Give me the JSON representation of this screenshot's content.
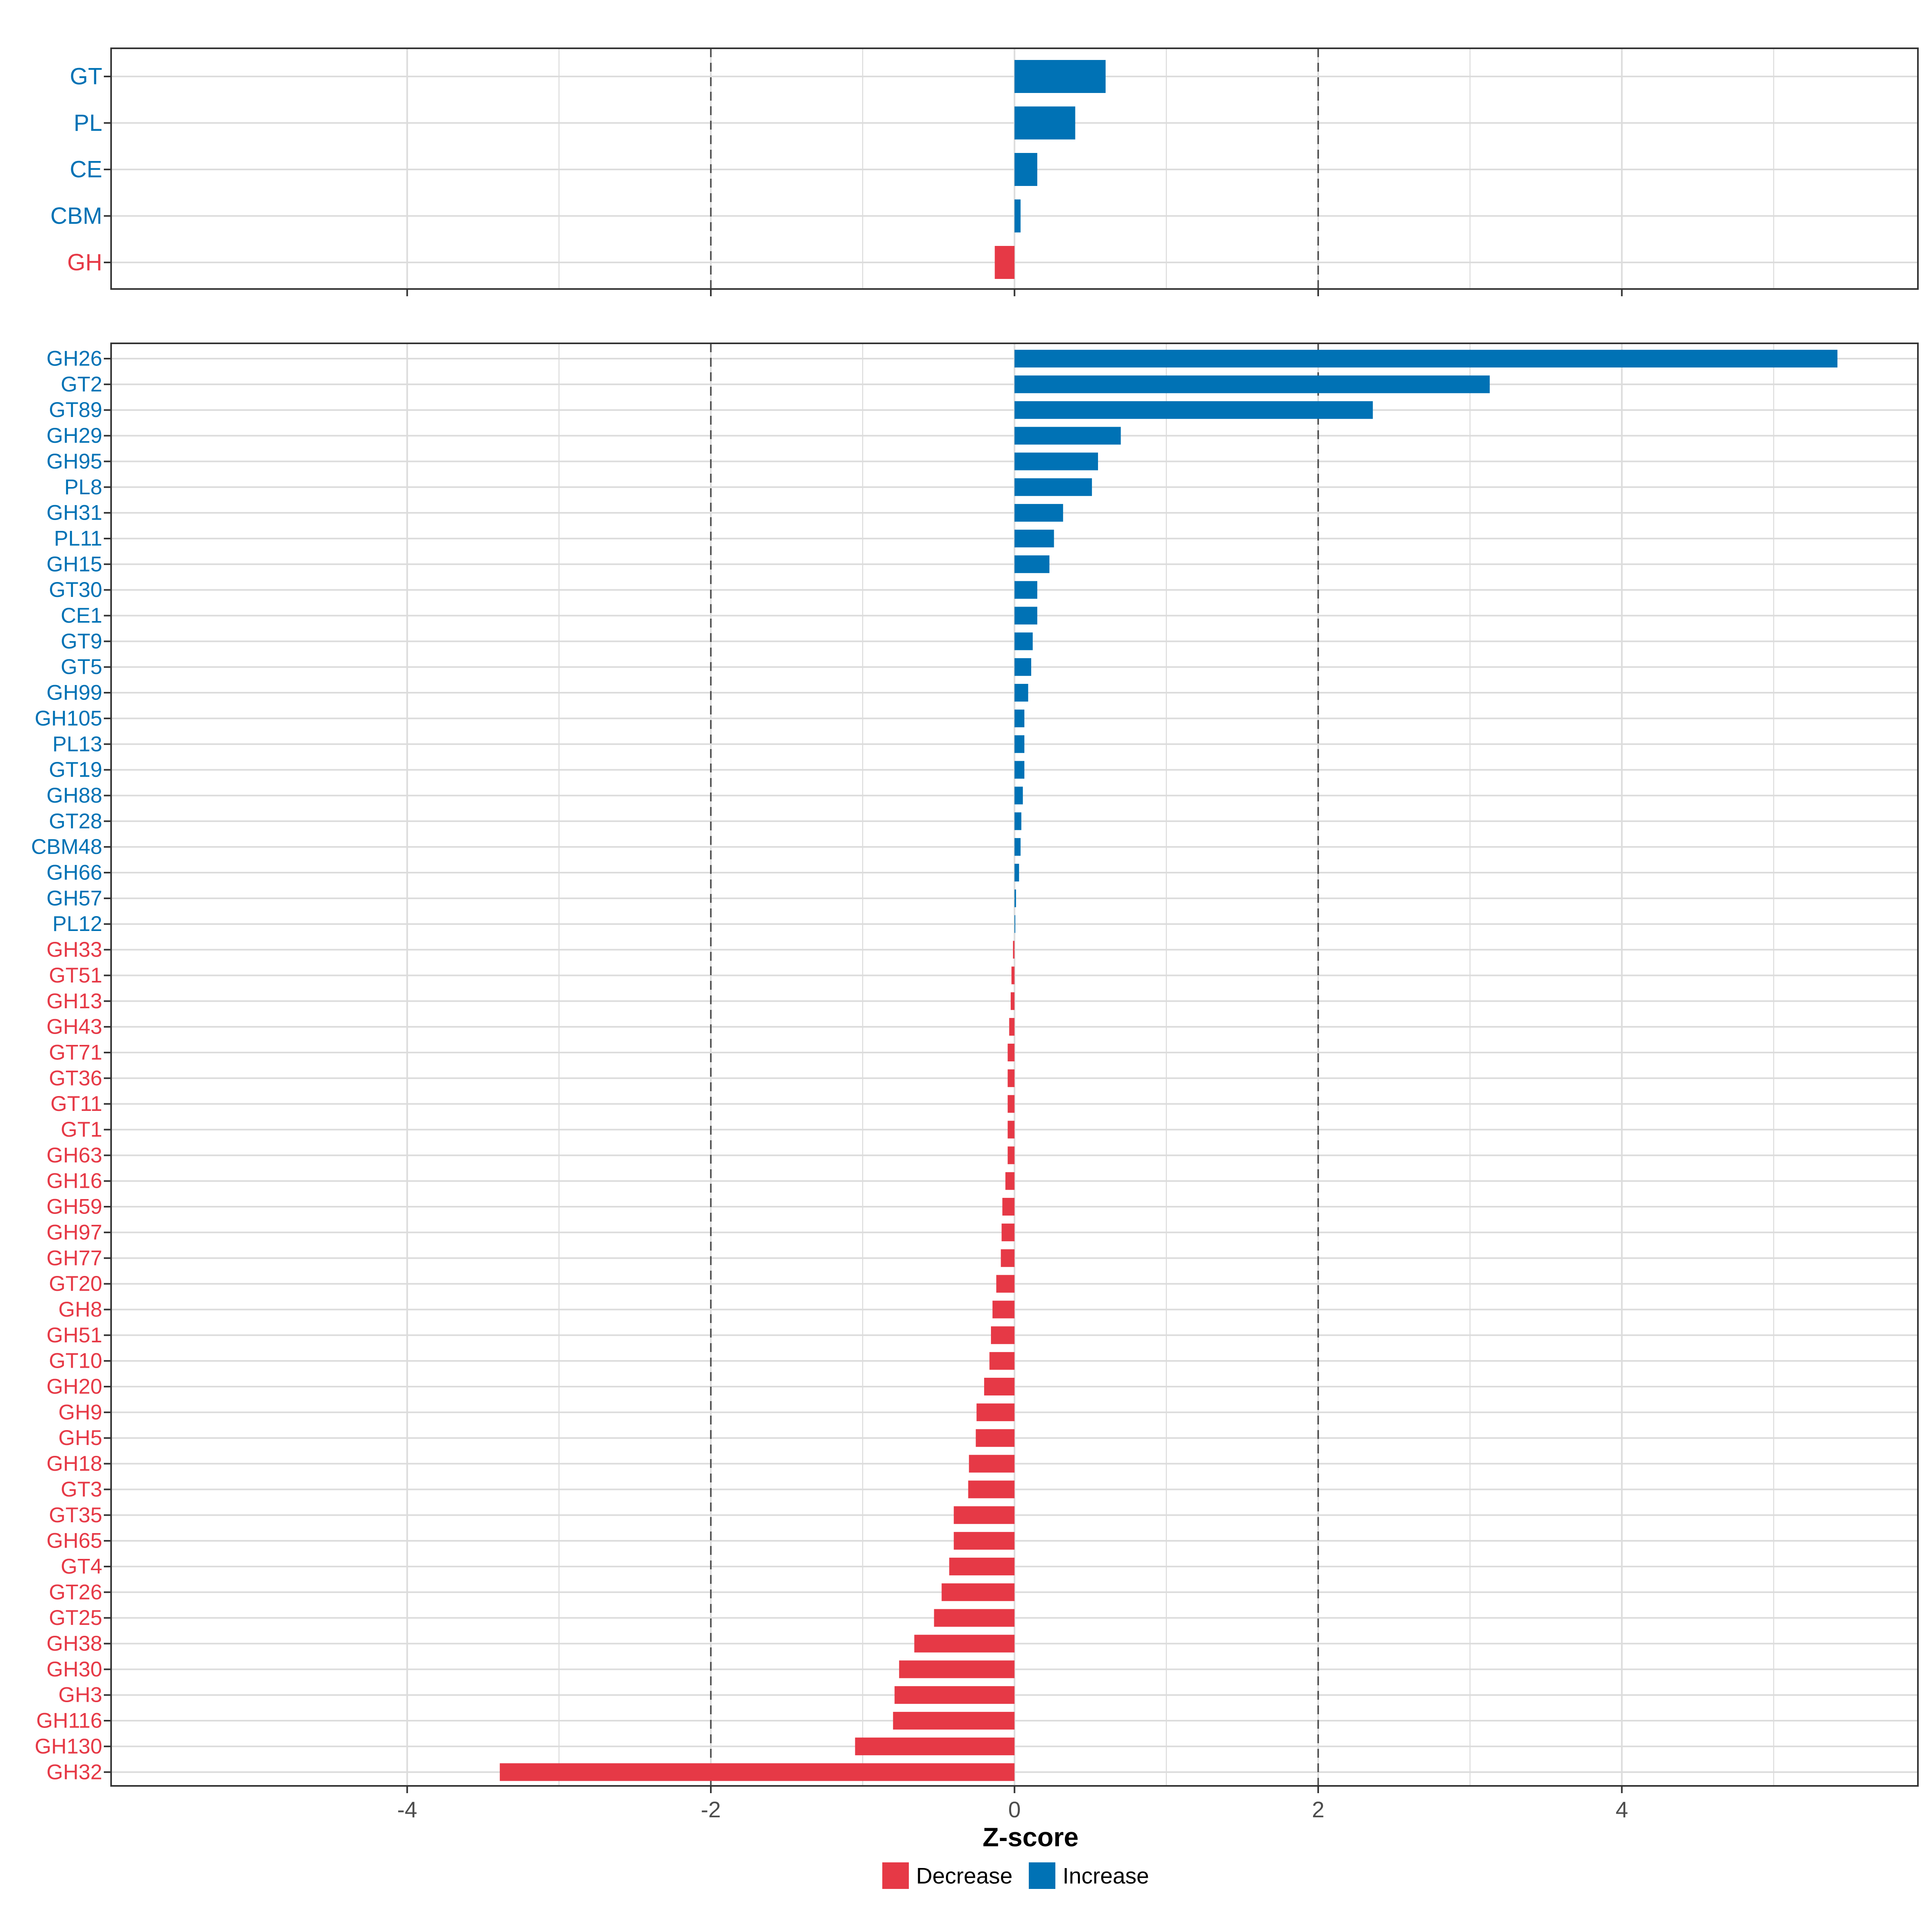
{
  "chart_data": {
    "type": "bar",
    "orientation": "horizontal",
    "xlabel": "Z-score",
    "ylabel": "",
    "xlim": [
      -5.95,
      5.95
    ],
    "x_ticks": [
      -4,
      -2,
      0,
      2,
      4
    ],
    "x_tick_labels": [
      "-4",
      "-2",
      "0",
      "2",
      "4"
    ],
    "reference_lines": [
      -2,
      2
    ],
    "grid": true,
    "colors": {
      "Increase": "#0072b5",
      "Decrease": "#e63946"
    },
    "legend": {
      "placement": "bottom",
      "entries": [
        {
          "name": "Decrease",
          "color": "#e63946"
        },
        {
          "name": "Increase",
          "color": "#0072b5"
        }
      ]
    },
    "panels": [
      {
        "name": "class",
        "categories": [
          "GT",
          "PL",
          "CE",
          "CBM",
          "GH"
        ],
        "values": [
          0.6,
          0.4,
          0.15,
          0.04,
          -0.13
        ]
      },
      {
        "name": "family",
        "categories": [
          "GH26",
          "GT2",
          "GT89",
          "GH29",
          "GH95",
          "PL8",
          "GH31",
          "PL11",
          "GH15",
          "GT30",
          "CE1",
          "GT9",
          "GT5",
          "GH99",
          "GH105",
          "PL13",
          "GT19",
          "GH88",
          "GT28",
          "CBM48",
          "GH66",
          "GH57",
          "PL12",
          "GH33",
          "GT51",
          "GH13",
          "GH43",
          "GT71",
          "GT36",
          "GT11",
          "GT1",
          "GH63",
          "GH16",
          "GH59",
          "GH97",
          "GH77",
          "GT20",
          "GH8",
          "GH51",
          "GT10",
          "GH20",
          "GH9",
          "GH5",
          "GH18",
          "GT3",
          "GT35",
          "GH65",
          "GT4",
          "GT26",
          "GT25",
          "GH38",
          "GH30",
          "GH3",
          "GH116",
          "GH130",
          "GH32"
        ],
        "values": [
          5.42,
          3.13,
          2.36,
          0.7,
          0.55,
          0.51,
          0.32,
          0.26,
          0.23,
          0.15,
          0.15,
          0.12,
          0.11,
          0.09,
          0.065,
          0.065,
          0.065,
          0.055,
          0.045,
          0.04,
          0.03,
          0.01,
          0.005,
          -0.01,
          -0.02,
          -0.025,
          -0.035,
          -0.045,
          -0.045,
          -0.045,
          -0.045,
          -0.045,
          -0.06,
          -0.08,
          -0.085,
          -0.09,
          -0.12,
          -0.145,
          -0.155,
          -0.165,
          -0.2,
          -0.25,
          -0.255,
          -0.3,
          -0.305,
          -0.4,
          -0.4,
          -0.43,
          -0.48,
          -0.53,
          -0.66,
          -0.76,
          -0.79,
          -0.8,
          -1.05,
          -3.39
        ]
      }
    ]
  }
}
